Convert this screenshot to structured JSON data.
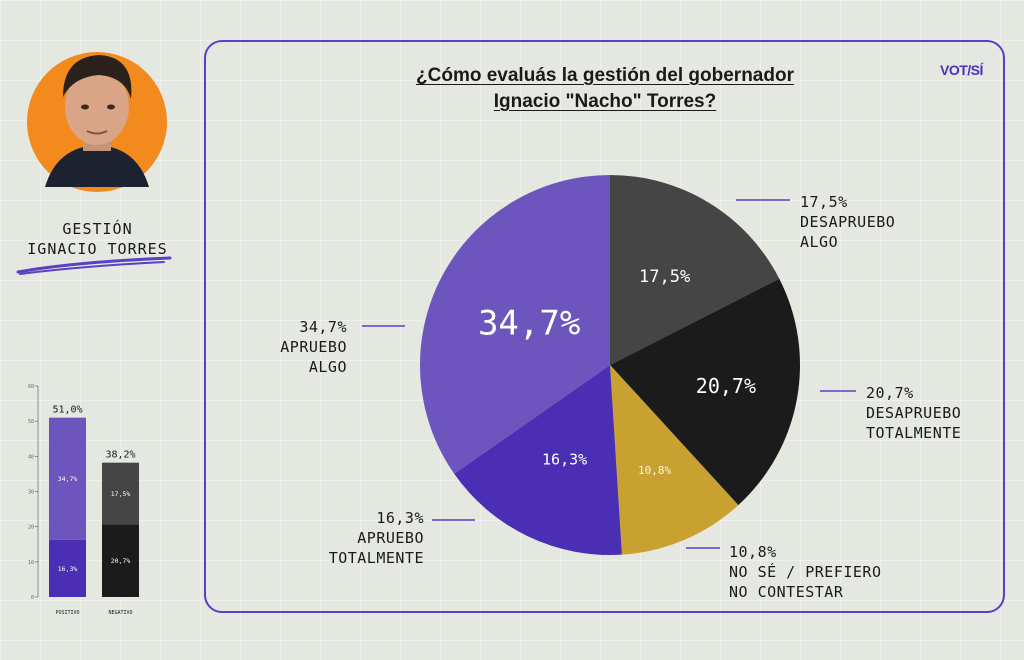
{
  "sidebar": {
    "title_line1": "GESTIÓN",
    "title_line2": "IGNACIO TORRES",
    "avatar_bg": "#f28a1e"
  },
  "panel": {
    "title_line1": "¿Cómo evaluás la gestión del gobernador",
    "title_line2": "Ignacio \"Nacho\" Torres?",
    "logo": "VOT/SÍ",
    "border_color": "#5b3fc4"
  },
  "chart_data": [
    {
      "type": "pie",
      "title": "¿Cómo evaluás la gestión del gobernador Ignacio \"Nacho\" Torres?",
      "slices": [
        {
          "key": "desapruebo_algo",
          "value": 17.5,
          "value_label": "17,5%",
          "label_line1": "DESAPRUEBO",
          "label_line2": "ALGO",
          "color": "#454545"
        },
        {
          "key": "desapruebo_totalmente",
          "value": 20.7,
          "value_label": "20,7%",
          "label_line1": "DESAPRUEBO",
          "label_line2": "TOTALMENTE",
          "color": "#1b1b1b"
        },
        {
          "key": "no_se",
          "value": 10.8,
          "value_label": "10,8%",
          "label_line1": "NO SÉ / PREFIERO",
          "label_line2": "NO CONTESTAR",
          "color": "#c9a130"
        },
        {
          "key": "apruebo_totalmente",
          "value": 16.3,
          "value_label": "16,3%",
          "label_line1": "APRUEBO",
          "label_line2": "TOTALMENTE",
          "color": "#4a2fb5"
        },
        {
          "key": "apruebo_algo",
          "value": 34.7,
          "value_label": "34,7%",
          "label_line1": "APRUEBO",
          "label_line2": "ALGO",
          "color": "#6c55bd"
        }
      ]
    },
    {
      "type": "bar",
      "stacked": true,
      "categories": [
        "POSITIVO",
        "NEGATIVO"
      ],
      "totals": [
        51.0,
        38.2
      ],
      "total_labels": [
        "51,0%",
        "38,2%"
      ],
      "series": [
        {
          "values": [
            16.3,
            20.7
          ],
          "value_labels": [
            "16,3%",
            "20,7%"
          ],
          "colors": [
            "#4a2fb5",
            "#1b1b1b"
          ]
        },
        {
          "values": [
            34.7,
            17.5
          ],
          "value_labels": [
            "34,7%",
            "17,5%"
          ],
          "colors": [
            "#6c55bd",
            "#454545"
          ]
        }
      ],
      "ylim": [
        0,
        60
      ],
      "yticks": [
        "0",
        "10",
        "20",
        "30",
        "40",
        "50",
        "60"
      ]
    }
  ]
}
